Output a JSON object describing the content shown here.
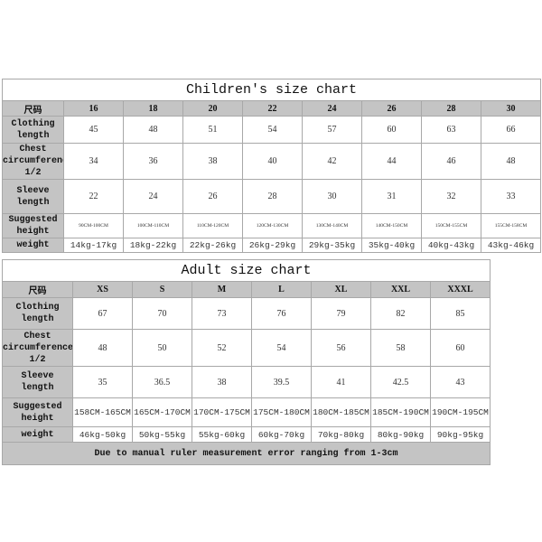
{
  "children": {
    "title": "Children's size chart",
    "row_labels": {
      "size": "尺码",
      "clothing_length": "Clothing length",
      "chest": "Chest circumference 1/2",
      "sleeve": "Sleeve length",
      "height": "Suggested height",
      "weight": "weight"
    },
    "sizes": [
      "16",
      "18",
      "20",
      "22",
      "24",
      "26",
      "28",
      "30"
    ],
    "clothing_length": [
      "45",
      "48",
      "51",
      "54",
      "57",
      "60",
      "63",
      "66"
    ],
    "chest": [
      "34",
      "36",
      "38",
      "40",
      "42",
      "44",
      "46",
      "48"
    ],
    "sleeve": [
      "22",
      "24",
      "26",
      "28",
      "30",
      "31",
      "32",
      "33"
    ],
    "height": [
      "90CM-100CM",
      "100CM-110CM",
      "110CM-120CM",
      "120CM-130CM",
      "130CM-140CM",
      "140CM-150CM",
      "150CM-155CM",
      "155CM-158CM"
    ],
    "weight": [
      "14kg-17kg",
      "18kg-22kg",
      "22kg-26kg",
      "26kg-29kg",
      "29kg-35kg",
      "35kg-40kg",
      "40kg-43kg",
      "43kg-46kg"
    ]
  },
  "adult": {
    "title": "Adult size chart",
    "row_labels": {
      "size": "尺码",
      "clothing_length": "Clothing length",
      "chest": "Chest circumference 1/2",
      "sleeve": "Sleeve length",
      "height": "Suggested height",
      "weight": "weight"
    },
    "sizes": [
      "XS",
      "S",
      "M",
      "L",
      "XL",
      "XXL",
      "XXXL"
    ],
    "clothing_length": [
      "67",
      "70",
      "73",
      "76",
      "79",
      "82",
      "85"
    ],
    "chest": [
      "48",
      "50",
      "52",
      "54",
      "56",
      "58",
      "60"
    ],
    "sleeve": [
      "35",
      "36.5",
      "38",
      "39.5",
      "41",
      "42.5",
      "43"
    ],
    "height": [
      "158CM-165CM",
      "165CM-170CM",
      "170CM-175CM",
      "175CM-180CM",
      "180CM-185CM",
      "185CM-190CM",
      "190CM-195CM"
    ],
    "weight": [
      "46kg-50kg",
      "50kg-55kg",
      "55kg-60kg",
      "60kg-70kg",
      "70kg-80kg",
      "80kg-90kg",
      "90kg-95kg"
    ],
    "note": "Due to manual ruler measurement error ranging from 1-3cm"
  },
  "colors": {
    "header_bg": "#c4c4c4",
    "border": "#a8a8a8"
  }
}
